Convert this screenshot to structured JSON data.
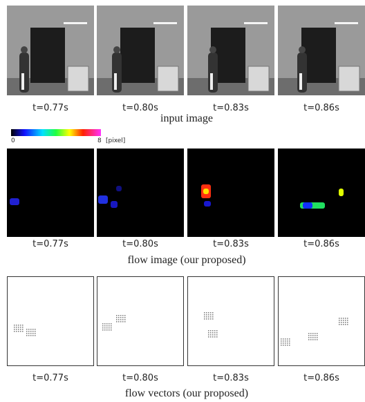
{
  "figure": {
    "rows": [
      {
        "times": [
          "t=0.77s",
          "t=0.80s",
          "t=0.83s",
          "t=0.86s"
        ],
        "caption": "input image"
      },
      {
        "times": [
          "t=0.77s",
          "t=0.80s",
          "t=0.83s",
          "t=0.86s"
        ],
        "caption": "flow image (our proposed)"
      },
      {
        "times": [
          "t=0.77s",
          "t=0.80s",
          "t=0.83s",
          "t=0.86s"
        ],
        "caption": "flow vectors (our proposed)"
      }
    ],
    "colorbar": {
      "min": "0",
      "max": "8",
      "unit": "[pixel]"
    }
  }
}
